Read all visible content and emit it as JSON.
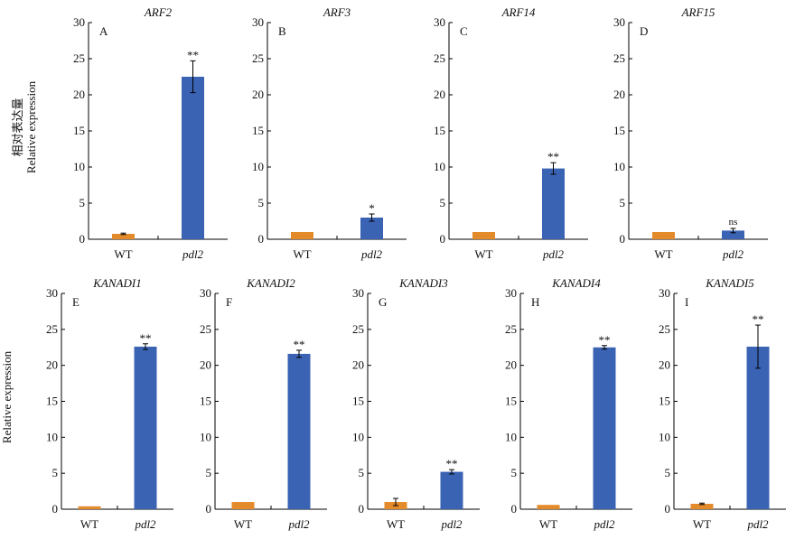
{
  "colors": {
    "wt": "#e38a2b",
    "mutant": "#3b63b3",
    "axis": "#000000"
  },
  "y_axis_title": {
    "cn": "相对表达量",
    "en": "Relative expression"
  },
  "chart_data": [
    {
      "type": "bar",
      "letter": "A",
      "title": "ARF2",
      "categories": [
        "WT",
        "pdl2"
      ],
      "values": [
        0.75,
        22.5
      ],
      "errors": [
        0.1,
        2.2
      ],
      "annotations": [
        "",
        "**"
      ],
      "ylim": [
        0,
        30
      ],
      "yticks": [
        "0",
        "5",
        "10",
        "15",
        "20",
        "25",
        "30"
      ]
    },
    {
      "type": "bar",
      "letter": "B",
      "title": "ARF3",
      "categories": [
        "WT",
        "pdl2"
      ],
      "values": [
        1.0,
        3.0
      ],
      "errors": [
        0.05,
        0.5
      ],
      "annotations": [
        "",
        "*"
      ],
      "ylim": [
        0,
        30
      ],
      "yticks": [
        "0",
        "5",
        "10",
        "15",
        "20",
        "25",
        "30"
      ]
    },
    {
      "type": "bar",
      "letter": "C",
      "title": "ARF14",
      "categories": [
        "WT",
        "pdl2"
      ],
      "values": [
        1.0,
        9.8
      ],
      "errors": [
        0.05,
        0.8
      ],
      "annotations": [
        "",
        "**"
      ],
      "ylim": [
        0,
        30
      ],
      "yticks": [
        "0",
        "5",
        "10",
        "15",
        "20",
        "25",
        "30"
      ]
    },
    {
      "type": "bar",
      "letter": "D",
      "title": "ARF15",
      "categories": [
        "WT",
        "pdl2"
      ],
      "values": [
        1.0,
        1.2
      ],
      "errors": [
        0.05,
        0.3
      ],
      "annotations": [
        "",
        "ns"
      ],
      "ylim": [
        0,
        30
      ],
      "yticks": [
        "0",
        "5",
        "10",
        "15",
        "20",
        "25",
        "30"
      ]
    },
    {
      "type": "bar",
      "letter": "E",
      "title": "KANADI1",
      "categories": [
        "WT",
        "pdl2"
      ],
      "values": [
        0.4,
        22.6
      ],
      "errors": [
        0.05,
        0.4
      ],
      "annotations": [
        "",
        "**"
      ],
      "ylim": [
        0,
        30
      ],
      "yticks": [
        "0",
        "5",
        "10",
        "15",
        "20",
        "25",
        "30"
      ]
    },
    {
      "type": "bar",
      "letter": "F",
      "title": "KANADI2",
      "categories": [
        "WT",
        "pdl2"
      ],
      "values": [
        1.0,
        21.6
      ],
      "errors": [
        0.05,
        0.5
      ],
      "annotations": [
        "",
        "**"
      ],
      "ylim": [
        0,
        30
      ],
      "yticks": [
        "0",
        "5",
        "10",
        "15",
        "20",
        "25",
        "30"
      ]
    },
    {
      "type": "bar",
      "letter": "G",
      "title": "KANADI3",
      "categories": [
        "WT",
        "pdl2"
      ],
      "values": [
        1.0,
        5.2
      ],
      "errors": [
        0.5,
        0.3
      ],
      "annotations": [
        "",
        "**"
      ],
      "ylim": [
        0,
        30
      ],
      "yticks": [
        "0",
        "5",
        "10",
        "15",
        "20",
        "25",
        "30"
      ]
    },
    {
      "type": "bar",
      "letter": "H",
      "title": "KANADI4",
      "categories": [
        "WT",
        "pdl2"
      ],
      "values": [
        0.6,
        22.5
      ],
      "errors": [
        0.05,
        0.25
      ],
      "annotations": [
        "",
        "**"
      ],
      "ylim": [
        0,
        30
      ],
      "yticks": [
        "0",
        "5",
        "10",
        "15",
        "20",
        "25",
        "30"
      ]
    },
    {
      "type": "bar",
      "letter": "I",
      "title": "KANADI5",
      "categories": [
        "WT",
        "pdl2"
      ],
      "values": [
        0.75,
        22.6
      ],
      "errors": [
        0.1,
        3.0
      ],
      "annotations": [
        "",
        "**"
      ],
      "ylim": [
        0,
        30
      ],
      "yticks": [
        "0",
        "5",
        "10",
        "15",
        "20",
        "25",
        "30"
      ]
    }
  ]
}
